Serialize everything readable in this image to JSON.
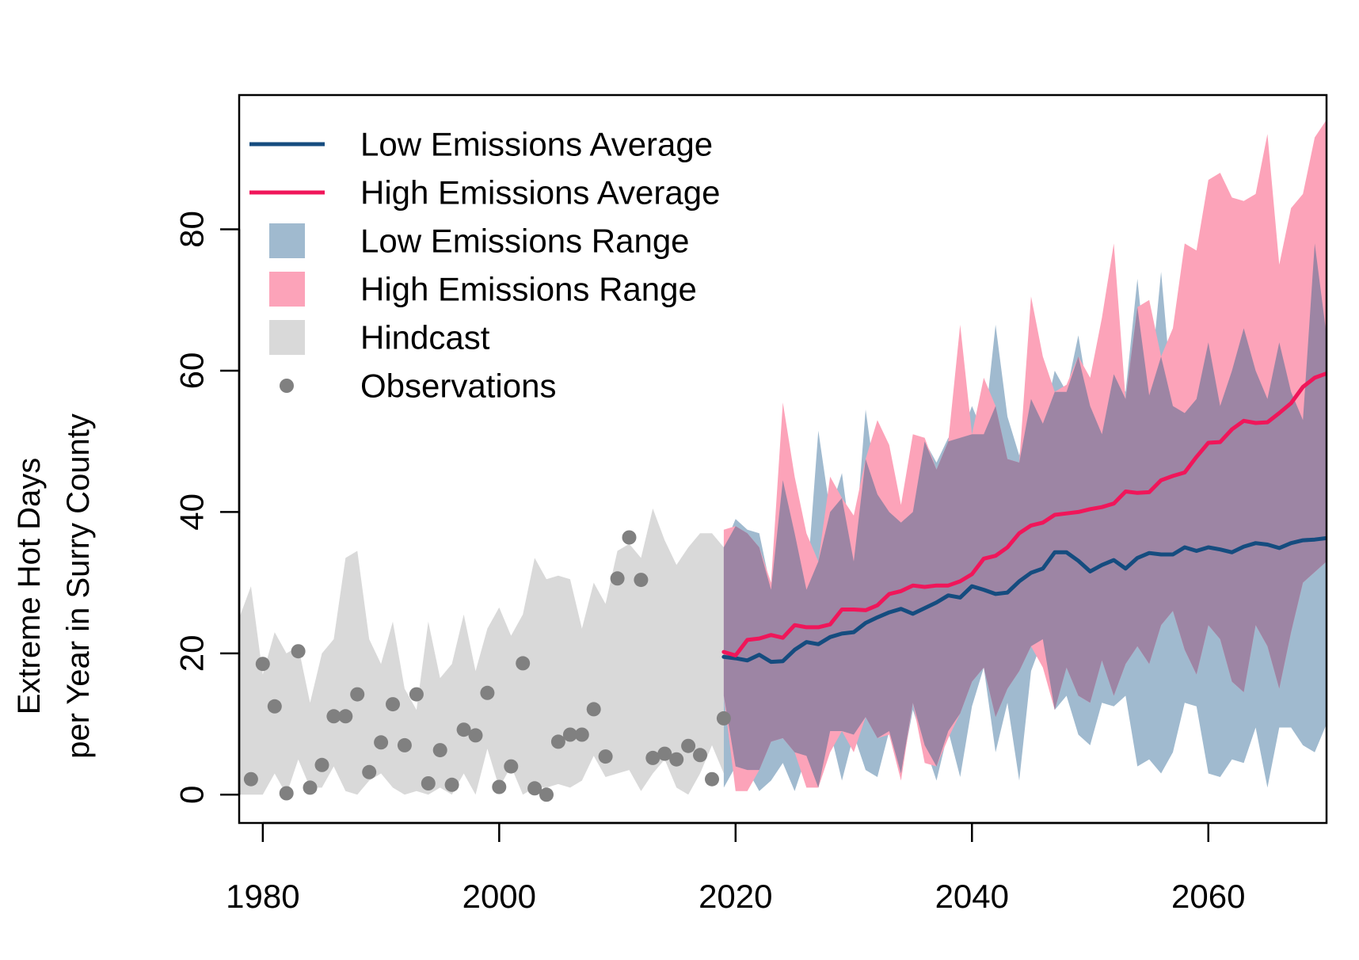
{
  "chart_data": {
    "type": "line",
    "title": "",
    "xlabel": "",
    "ylabel_lines": [
      "Extreme Hot Days",
      "per Year in Surry County"
    ],
    "xlim": [
      1978,
      2070
    ],
    "ylim": [
      -4,
      99
    ],
    "x_ticks": [
      1980,
      2000,
      2020,
      2040,
      2060
    ],
    "y_ticks": [
      0,
      20,
      40,
      60,
      80
    ],
    "grid": false,
    "legend_position": "top-left",
    "colors": {
      "low_line": "#154c7f",
      "high_line": "#f0165a",
      "low_range": "#a0bacf",
      "high_range": "#fca3b9",
      "overlap": "#9d85a4",
      "hindcast": "#d9d9d9",
      "observations": "#808080"
    },
    "legend": [
      {
        "label": "Low Emissions Average",
        "kind": "line",
        "color": "#154c7f"
      },
      {
        "label": "High Emissions Average",
        "kind": "line",
        "color": "#f0165a"
      },
      {
        "label": "Low Emissions Range",
        "kind": "box",
        "color": "#a0bacf"
      },
      {
        "label": "High Emissions Range",
        "kind": "box",
        "color": "#fca3b9"
      },
      {
        "label": "Hindcast",
        "kind": "box",
        "color": "#d9d9d9"
      },
      {
        "label": "Observations",
        "kind": "point",
        "color": "#808080"
      }
    ],
    "hindcast": {
      "x": [
        1978,
        1979,
        1980,
        1981,
        1982,
        1983,
        1984,
        1985,
        1986,
        1987,
        1988,
        1989,
        1990,
        1991,
        1992,
        1993,
        1994,
        1995,
        1996,
        1997,
        1998,
        1999,
        2000,
        2001,
        2002,
        2003,
        2004,
        2005,
        2006,
        2007,
        2008,
        2009,
        2010,
        2011,
        2012,
        2013,
        2014,
        2015,
        2016,
        2017,
        2018,
        2019
      ],
      "upper": [
        25,
        29.5,
        17,
        23,
        20,
        21,
        13,
        20,
        22,
        33.5,
        34.5,
        22,
        18.5,
        24.5,
        15,
        12,
        24.5,
        16.5,
        18.5,
        25.5,
        17.5,
        23.5,
        26.5,
        22.5,
        25.5,
        33.5,
        30.5,
        31,
        30.5,
        23.5,
        30,
        27,
        34.5,
        35.5,
        33.5,
        40.5,
        36,
        32.5,
        35,
        37,
        37,
        35
      ],
      "lower": [
        0,
        0,
        0,
        3,
        0,
        5,
        1,
        1,
        4,
        0.5,
        0,
        2,
        3,
        1,
        0,
        0.5,
        0,
        1,
        0,
        3,
        0,
        6.5,
        1,
        4,
        0,
        1,
        1,
        1.5,
        1,
        2,
        5.5,
        2.5,
        3,
        3.5,
        0.5,
        3,
        5,
        1,
        0,
        3,
        7,
        3
      ]
    },
    "observations": {
      "x": [
        1979,
        1980,
        1981,
        1982,
        1983,
        1984,
        1985,
        1986,
        1987,
        1988,
        1989,
        1990,
        1991,
        1992,
        1993,
        1994,
        1995,
        1996,
        1997,
        1998,
        1999,
        2000,
        2001,
        2002,
        2003,
        2004,
        2005,
        2006,
        2007,
        2008,
        2009,
        2010,
        2011,
        2012,
        2013,
        2014,
        2015,
        2016,
        2017,
        2018,
        2019
      ],
      "y": [
        2.2,
        18.5,
        12.5,
        0.2,
        20.3,
        1,
        4.2,
        11.1,
        11.1,
        14.2,
        3.2,
        7.4,
        12.8,
        7,
        14.2,
        1.6,
        6.3,
        1.4,
        9.2,
        8.4,
        14.4,
        1.1,
        4,
        18.6,
        0.9,
        0,
        7.5,
        8.5,
        8.5,
        12.1,
        5.4,
        30.6,
        36.4,
        30.4,
        5.2,
        5.8,
        5,
        6.9,
        5.6,
        2.2,
        10.8
      ]
    },
    "x": [
      2019,
      2020,
      2021,
      2022,
      2023,
      2024,
      2025,
      2026,
      2027,
      2028,
      2029,
      2030,
      2031,
      2032,
      2033,
      2034,
      2035,
      2036,
      2037,
      2038,
      2039,
      2040,
      2041,
      2042,
      2043,
      2044,
      2045,
      2046,
      2047,
      2048,
      2049,
      2050,
      2051,
      2052,
      2053,
      2054,
      2055,
      2056,
      2057,
      2058,
      2059,
      2060,
      2061,
      2062,
      2063,
      2064,
      2065,
      2066,
      2067,
      2068,
      2069,
      2070
    ],
    "series": [
      {
        "name": "Low Emissions Average",
        "values": [
          19.5,
          19.3,
          19,
          19.8,
          18.8,
          18.9,
          20.5,
          21.6,
          21.3,
          22.3,
          22.8,
          23,
          24.3,
          25.1,
          25.8,
          26.3,
          25.6,
          26.4,
          27.2,
          28.2,
          27.9,
          29.5,
          29,
          28.4,
          28.6,
          30.2,
          31.4,
          32,
          34.3,
          34.3,
          33.1,
          31.6,
          32.5,
          33.2,
          32,
          33.5,
          34.2,
          34,
          34,
          35,
          34.5,
          35,
          34.7,
          34.3,
          35.1,
          35.6,
          35.4,
          34.9,
          35.6,
          36,
          36.1,
          36.3
        ]
      },
      {
        "name": "High Emissions Average",
        "values": [
          20.2,
          19.7,
          21.9,
          22.1,
          22.6,
          22.2,
          24,
          23.7,
          23.7,
          24.1,
          26.2,
          26.2,
          26.1,
          26.8,
          28.4,
          28.8,
          29.6,
          29.4,
          29.6,
          29.6,
          30.2,
          31.2,
          33.4,
          33.8,
          35,
          37,
          38.1,
          38.5,
          39.6,
          39.8,
          40,
          40.4,
          40.7,
          41.2,
          42.9,
          42.7,
          42.8,
          44.5,
          45.1,
          45.6,
          47.8,
          49.8,
          49.9,
          51.7,
          52.9,
          52.6,
          52.7,
          54,
          55.4,
          57.7,
          59,
          59.6
        ]
      }
    ],
    "ranges": [
      {
        "name": "Low Emissions Range",
        "upper": [
          35,
          39,
          37.5,
          37,
          29,
          44.5,
          37,
          29,
          51.5,
          40,
          45.5,
          33,
          54.5,
          42.5,
          40,
          38.5,
          40,
          50,
          47,
          50.5,
          50.5,
          55,
          51,
          66.5,
          53.5,
          48,
          56,
          52.5,
          60,
          57,
          65,
          55,
          51,
          59.5,
          57,
          73,
          56.5,
          74,
          55,
          54,
          56,
          64,
          55,
          60,
          66,
          60,
          56,
          64,
          57,
          53,
          78,
          65
        ],
        "lower": [
          1,
          4,
          3.5,
          0.5,
          2,
          4.5,
          0.5,
          5.5,
          1,
          9,
          2,
          8.5,
          3.5,
          2.5,
          9,
          3,
          12,
          7,
          2,
          9,
          2.5,
          12.5,
          18,
          6,
          13,
          2,
          17.5,
          22,
          12,
          14,
          8.5,
          7,
          13,
          12.5,
          14,
          4,
          5,
          3,
          6,
          13,
          12.5,
          3,
          2.5,
          5,
          4.5,
          9.5,
          1,
          9.5,
          9.5,
          7,
          6,
          10
        ]
      },
      {
        "name": "High Emissions Range",
        "upper": [
          37.5,
          38,
          37,
          35,
          30,
          55.5,
          45,
          37,
          33,
          45,
          42,
          39.5,
          47.5,
          53,
          49.5,
          41,
          51,
          50.5,
          46,
          50,
          66.5,
          51,
          59,
          55,
          47.5,
          47,
          70.5,
          62,
          57,
          58,
          62,
          59,
          67.5,
          78,
          56,
          69,
          70,
          62,
          66,
          78,
          77,
          87,
          88,
          84.5,
          84,
          85,
          93.5,
          75,
          83,
          85,
          93,
          95.5
        ],
        "lower": [
          14,
          0.5,
          0.5,
          3.5,
          7.5,
          8,
          6,
          1,
          1,
          6,
          9,
          6,
          11,
          8,
          8.5,
          2,
          13,
          4.5,
          4,
          8,
          11.5,
          16,
          18,
          11,
          15,
          17.5,
          21,
          18,
          12,
          18,
          14,
          13,
          19,
          14,
          18.5,
          21,
          18.5,
          24,
          26,
          20.5,
          17,
          24,
          22,
          16,
          14.5,
          24,
          21,
          15,
          23,
          30,
          31.5,
          33
        ]
      }
    ]
  }
}
